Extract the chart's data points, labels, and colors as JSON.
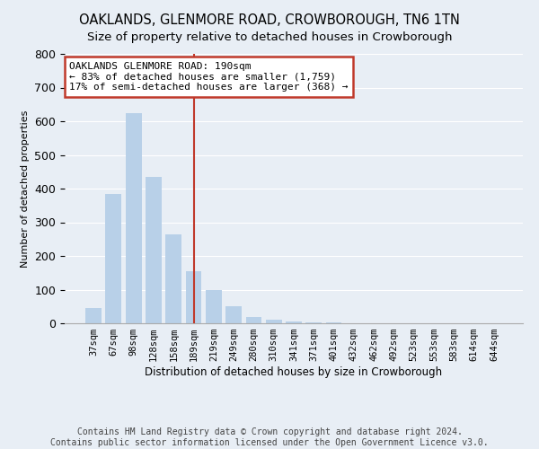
{
  "title": "OAKLANDS, GLENMORE ROAD, CROWBOROUGH, TN6 1TN",
  "subtitle": "Size of property relative to detached houses in Crowborough",
  "xlabel": "Distribution of detached houses by size in Crowborough",
  "ylabel": "Number of detached properties",
  "categories": [
    "37sqm",
    "67sqm",
    "98sqm",
    "128sqm",
    "158sqm",
    "189sqm",
    "219sqm",
    "249sqm",
    "280sqm",
    "310sqm",
    "341sqm",
    "371sqm",
    "401sqm",
    "432sqm",
    "462sqm",
    "492sqm",
    "523sqm",
    "553sqm",
    "583sqm",
    "614sqm",
    "644sqm"
  ],
  "values": [
    45,
    385,
    625,
    435,
    265,
    155,
    100,
    50,
    20,
    10,
    5,
    3,
    2,
    1,
    1,
    0,
    0,
    0,
    0,
    0,
    0
  ],
  "highlight_index": 5,
  "bar_color_normal": "#b8d0e8",
  "bar_color_highlight": "#c0c0c0",
  "vline_color": "#c0392b",
  "annotation_text": "OAKLANDS GLENMORE ROAD: 190sqm\n← 83% of detached houses are smaller (1,759)\n17% of semi-detached houses are larger (368) →",
  "annotation_box_facecolor": "#ffffff",
  "annotation_box_edgecolor": "#c0392b",
  "ylim": [
    0,
    800
  ],
  "yticks": [
    0,
    100,
    200,
    300,
    400,
    500,
    600,
    700,
    800
  ],
  "footer": "Contains HM Land Registry data © Crown copyright and database right 2024.\nContains public sector information licensed under the Open Government Licence v3.0.",
  "bg_color": "#e8eef5",
  "title_fontsize": 10.5,
  "subtitle_fontsize": 9.5,
  "tick_fontsize": 7.5,
  "ylabel_fontsize": 8,
  "xlabel_fontsize": 8.5
}
